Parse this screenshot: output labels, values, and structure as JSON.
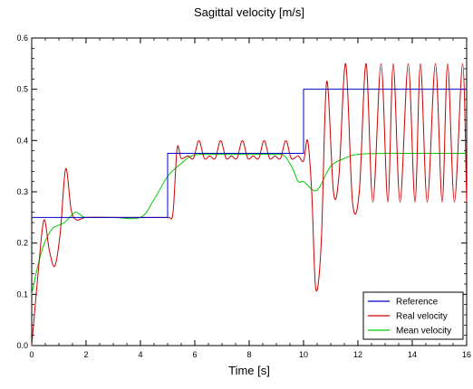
{
  "chart_data": {
    "type": "line",
    "title": "Sagittal velocity [m/s]",
    "xlabel": "Time [s]",
    "ylabel": "",
    "xlim": [
      0,
      16
    ],
    "ylim": [
      0,
      0.6
    ],
    "xticks": [
      0,
      2,
      4,
      6,
      8,
      10,
      12,
      14,
      16
    ],
    "yticks": [
      0.0,
      0.1,
      0.2,
      0.3,
      0.4,
      0.5,
      0.6
    ],
    "xtick_labels": [
      "0",
      "2",
      "4",
      "6",
      "8",
      "10",
      "12",
      "14",
      "16"
    ],
    "ytick_labels": [
      "0.0",
      "0.1",
      "0.2",
      "0.3",
      "0.4",
      "0.5",
      "0.6"
    ],
    "grid": false,
    "legend_position": "bottom-right",
    "series": [
      {
        "name": "Reference",
        "color": "#0000cc",
        "style": "step",
        "x": [
          0,
          5,
          5,
          10,
          10,
          16
        ],
        "y": [
          0.25,
          0.25,
          0.375,
          0.375,
          0.5,
          0.5
        ]
      },
      {
        "name": "Real velocity",
        "color": "#cc0000",
        "style": "smooth",
        "x": [
          0,
          0.25,
          0.45,
          0.65,
          0.85,
          1.05,
          1.25,
          1.45,
          1.65,
          2.0,
          3.0,
          4.0,
          4.9,
          5.05,
          5.2,
          5.35,
          5.5,
          5.75,
          5.95,
          6.15,
          6.35,
          6.55,
          6.75,
          6.95,
          7.15,
          7.35,
          7.55,
          7.75,
          7.95,
          8.15,
          8.35,
          8.55,
          8.75,
          8.95,
          9.15,
          9.35,
          9.55,
          9.8,
          10.0,
          10.15,
          10.3,
          10.45,
          10.65,
          10.85,
          11.1,
          11.3,
          11.55,
          11.8,
          12.05,
          12.3,
          12.55,
          12.85,
          13.1,
          13.3,
          13.55,
          13.85,
          14.1,
          14.3,
          14.55,
          14.85,
          15.1,
          15.3,
          15.55,
          15.85,
          16.0
        ],
        "y": [
          0.0,
          0.15,
          0.245,
          0.185,
          0.155,
          0.22,
          0.345,
          0.265,
          0.245,
          0.25,
          0.25,
          0.25,
          0.25,
          0.25,
          0.26,
          0.385,
          0.365,
          0.37,
          0.365,
          0.4,
          0.365,
          0.37,
          0.365,
          0.4,
          0.365,
          0.37,
          0.365,
          0.4,
          0.365,
          0.37,
          0.365,
          0.4,
          0.365,
          0.37,
          0.365,
          0.4,
          0.365,
          0.37,
          0.36,
          0.4,
          0.3,
          0.11,
          0.2,
          0.515,
          0.3,
          0.33,
          0.55,
          0.28,
          0.3,
          0.55,
          0.28,
          0.55,
          0.28,
          0.55,
          0.28,
          0.55,
          0.28,
          0.55,
          0.28,
          0.55,
          0.28,
          0.55,
          0.28,
          0.55,
          0.28
        ]
      },
      {
        "name": "Mean velocity",
        "color": "#00cc00",
        "style": "smooth",
        "x": [
          0,
          0.2,
          0.4,
          0.6,
          0.8,
          1.0,
          1.2,
          1.4,
          1.6,
          1.8,
          2.0,
          3.0,
          4.0,
          4.5,
          5.0,
          5.5,
          6.0,
          7.0,
          8.0,
          9.0,
          9.3,
          9.6,
          9.8,
          10.0,
          10.2,
          10.4,
          10.6,
          11.0,
          11.5,
          12.0,
          13.0,
          14.0,
          16.0
        ],
        "y": [
          0.1,
          0.15,
          0.19,
          0.215,
          0.23,
          0.235,
          0.24,
          0.25,
          0.26,
          0.255,
          0.25,
          0.25,
          0.25,
          0.285,
          0.33,
          0.355,
          0.372,
          0.373,
          0.373,
          0.373,
          0.37,
          0.345,
          0.32,
          0.32,
          0.31,
          0.302,
          0.31,
          0.35,
          0.365,
          0.373,
          0.375,
          0.375,
          0.375
        ]
      }
    ]
  }
}
